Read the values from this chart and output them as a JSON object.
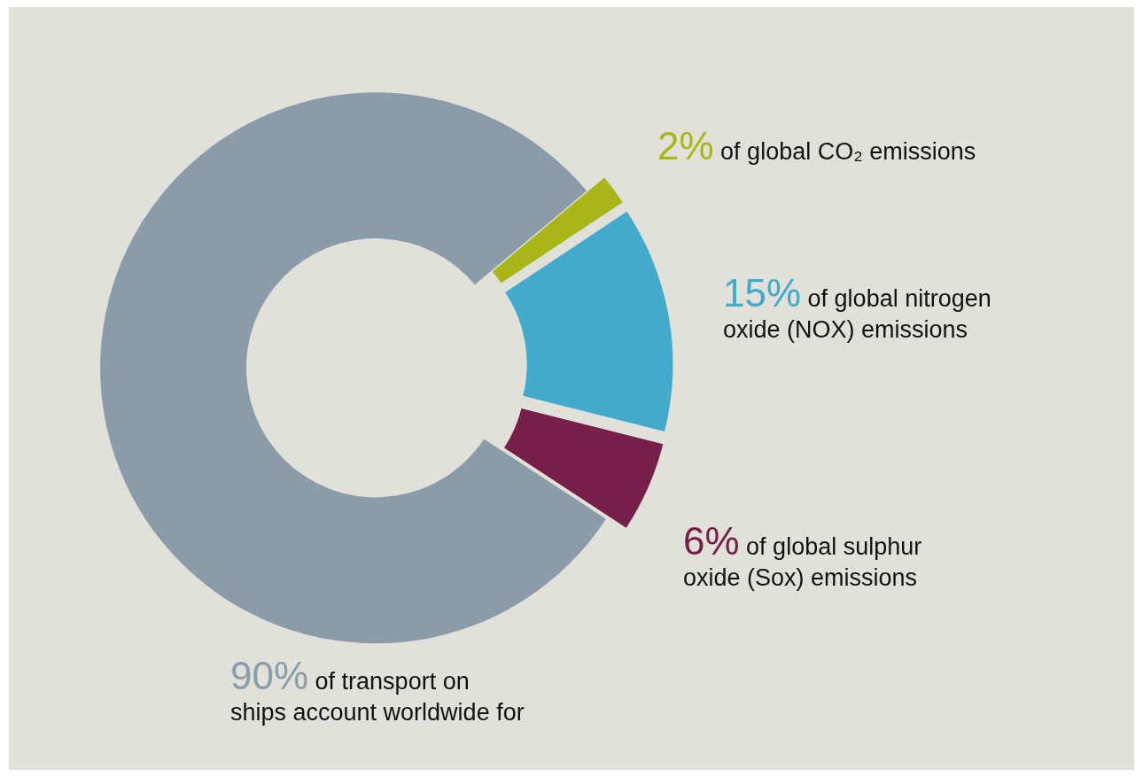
{
  "chart_data": {
    "type": "donut",
    "categories": [
      "of global CO₂ emissions",
      "of global nitrogen\noxide (NOX) emissions",
      "of global sulphur\noxide (Sox) emissions",
      "of transport on\nships account worldwide for"
    ],
    "values": [
      2,
      15,
      6,
      90
    ],
    "value_labels": [
      "2%",
      "15%",
      "6%",
      "90%"
    ],
    "colors": [
      "#a9b617",
      "#42abcb",
      "#761f48",
      "#8a9caa"
    ],
    "legend": false
  }
}
